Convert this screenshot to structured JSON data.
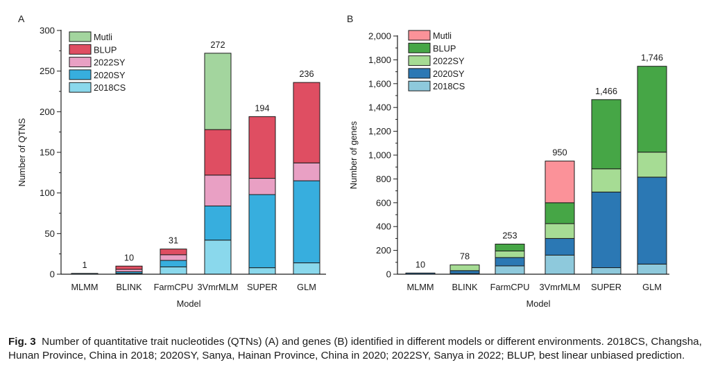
{
  "chart_data": [
    {
      "type": "bar",
      "stacked": true,
      "panel_label": "A",
      "xlabel": "Model",
      "ylabel": "Number of QTNS",
      "ylim": [
        0,
        300
      ],
      "yticks": [
        0,
        50,
        100,
        150,
        200,
        250,
        300
      ],
      "ytick_labels": [
        "0",
        "50",
        "100",
        "150",
        "200",
        "250",
        "300"
      ],
      "categories": [
        "MLMM",
        "BLINK",
        "FarmCPU",
        "3VmrMLM",
        "SUPER",
        "GLM"
      ],
      "totals": [
        1,
        10,
        31,
        272,
        194,
        236
      ],
      "total_labels": [
        "1",
        "10",
        "31",
        "272",
        "194",
        "236"
      ],
      "series": [
        {
          "name": "2018CS",
          "color": "#8ad8ec",
          "values": [
            0,
            1,
            9,
            42,
            8,
            14
          ]
        },
        {
          "name": "2020SY",
          "color": "#37aede",
          "values": [
            1,
            2,
            8,
            42,
            90,
            101
          ]
        },
        {
          "name": "2022SY",
          "color": "#e9a0c4",
          "values": [
            0,
            3,
            7,
            38,
            20,
            22
          ]
        },
        {
          "name": "BLUP",
          "color": "#df4e62",
          "values": [
            0,
            4,
            7,
            56,
            76,
            99
          ]
        },
        {
          "name": "Mutli",
          "color": "#a3d59e",
          "values": [
            0,
            0,
            0,
            94,
            0,
            0
          ]
        }
      ],
      "legend": "top-left"
    },
    {
      "type": "bar",
      "stacked": true,
      "panel_label": "B",
      "xlabel": "Model",
      "ylabel": "Number of genes",
      "ylim": [
        0,
        2000
      ],
      "yticks": [
        0,
        200,
        400,
        600,
        800,
        1000,
        1200,
        1400,
        1600,
        1800,
        2000
      ],
      "ytick_labels": [
        "0",
        "200",
        "400",
        "600",
        "800",
        "1,000",
        "1,200",
        "1,400",
        "1,600",
        "1,800",
        "2,000"
      ],
      "categories": [
        "MLMM",
        "BLINK",
        "FarmCPU",
        "3VmrMLM",
        "SUPER",
        "GLM"
      ],
      "totals": [
        10,
        78,
        253,
        950,
        1466,
        1746
      ],
      "total_labels": [
        "10",
        "78",
        "253",
        "950",
        "1,466",
        "1,746"
      ],
      "series": [
        {
          "name": "2018CS",
          "color": "#8ec9dc",
          "values": [
            0,
            5,
            70,
            160,
            55,
            85
          ]
        },
        {
          "name": "2020SY",
          "color": "#2b78b4",
          "values": [
            10,
            25,
            70,
            140,
            635,
            730
          ]
        },
        {
          "name": "2022SY",
          "color": "#a6dc94",
          "values": [
            0,
            48,
            55,
            125,
            195,
            210
          ]
        },
        {
          "name": "BLUP",
          "color": "#46a646",
          "values": [
            0,
            0,
            58,
            175,
            581,
            721
          ]
        },
        {
          "name": "Mutli",
          "color": "#fb9299",
          "values": [
            0,
            0,
            0,
            350,
            0,
            0
          ]
        }
      ],
      "legend": "top-left"
    }
  ],
  "caption": {
    "label": "Fig. 3",
    "text": "Number of quantitative trait nucleotides (QTNs) (A) and genes (B) identified in different models or different environments. 2018CS, Changsha, Hunan Province, China in 2018; 2020SY, Sanya, Hainan Province, China in 2020; 2022SY, Sanya in 2022; BLUP, best linear unbiased prediction."
  }
}
